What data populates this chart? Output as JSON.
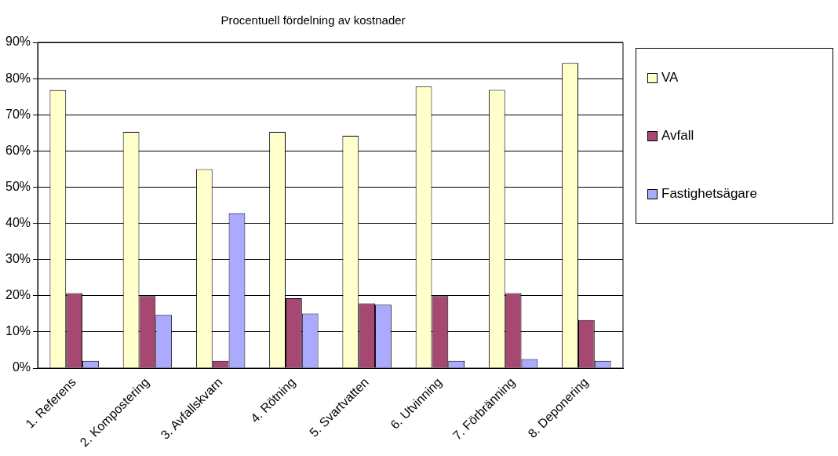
{
  "chart_data": {
    "type": "bar",
    "title": "Procentuell fördelning av kostnader",
    "categories": [
      "1. Referens",
      "2. Kompostering",
      "3. Avfallskvarn",
      "4. Rötning",
      "5. Svartvatten",
      "6. Utvinning",
      "7. Förbränning",
      "8. Deponering"
    ],
    "series": [
      {
        "name": "VA",
        "color": "#ffffcc",
        "values": [
          76.8,
          65.3,
          55.0,
          65.3,
          64.2,
          77.8,
          76.9,
          84.3
        ]
      },
      {
        "name": "Avfall",
        "color": "#a64872",
        "values": [
          20.7,
          19.9,
          2.0,
          19.3,
          17.9,
          19.9,
          20.7,
          13.3
        ]
      },
      {
        "name": "Fastighetsägare",
        "color": "#aaaaff",
        "values": [
          2.0,
          14.7,
          42.8,
          15.1,
          17.5,
          2.0,
          2.5,
          2.0
        ]
      }
    ],
    "ylim": [
      0,
      90
    ],
    "yticks": [
      {
        "value": 0,
        "label": "0%"
      },
      {
        "value": 10,
        "label": "10%"
      },
      {
        "value": 20,
        "label": "20%"
      },
      {
        "value": 30,
        "label": "30%"
      },
      {
        "value": 40,
        "label": "40%"
      },
      {
        "value": 50,
        "label": "50%"
      },
      {
        "value": 60,
        "label": "60%"
      },
      {
        "value": 70,
        "label": "70%"
      },
      {
        "value": 80,
        "label": "80%"
      },
      {
        "value": 90,
        "label": "90%"
      }
    ],
    "grid": "y",
    "legend": "right"
  }
}
